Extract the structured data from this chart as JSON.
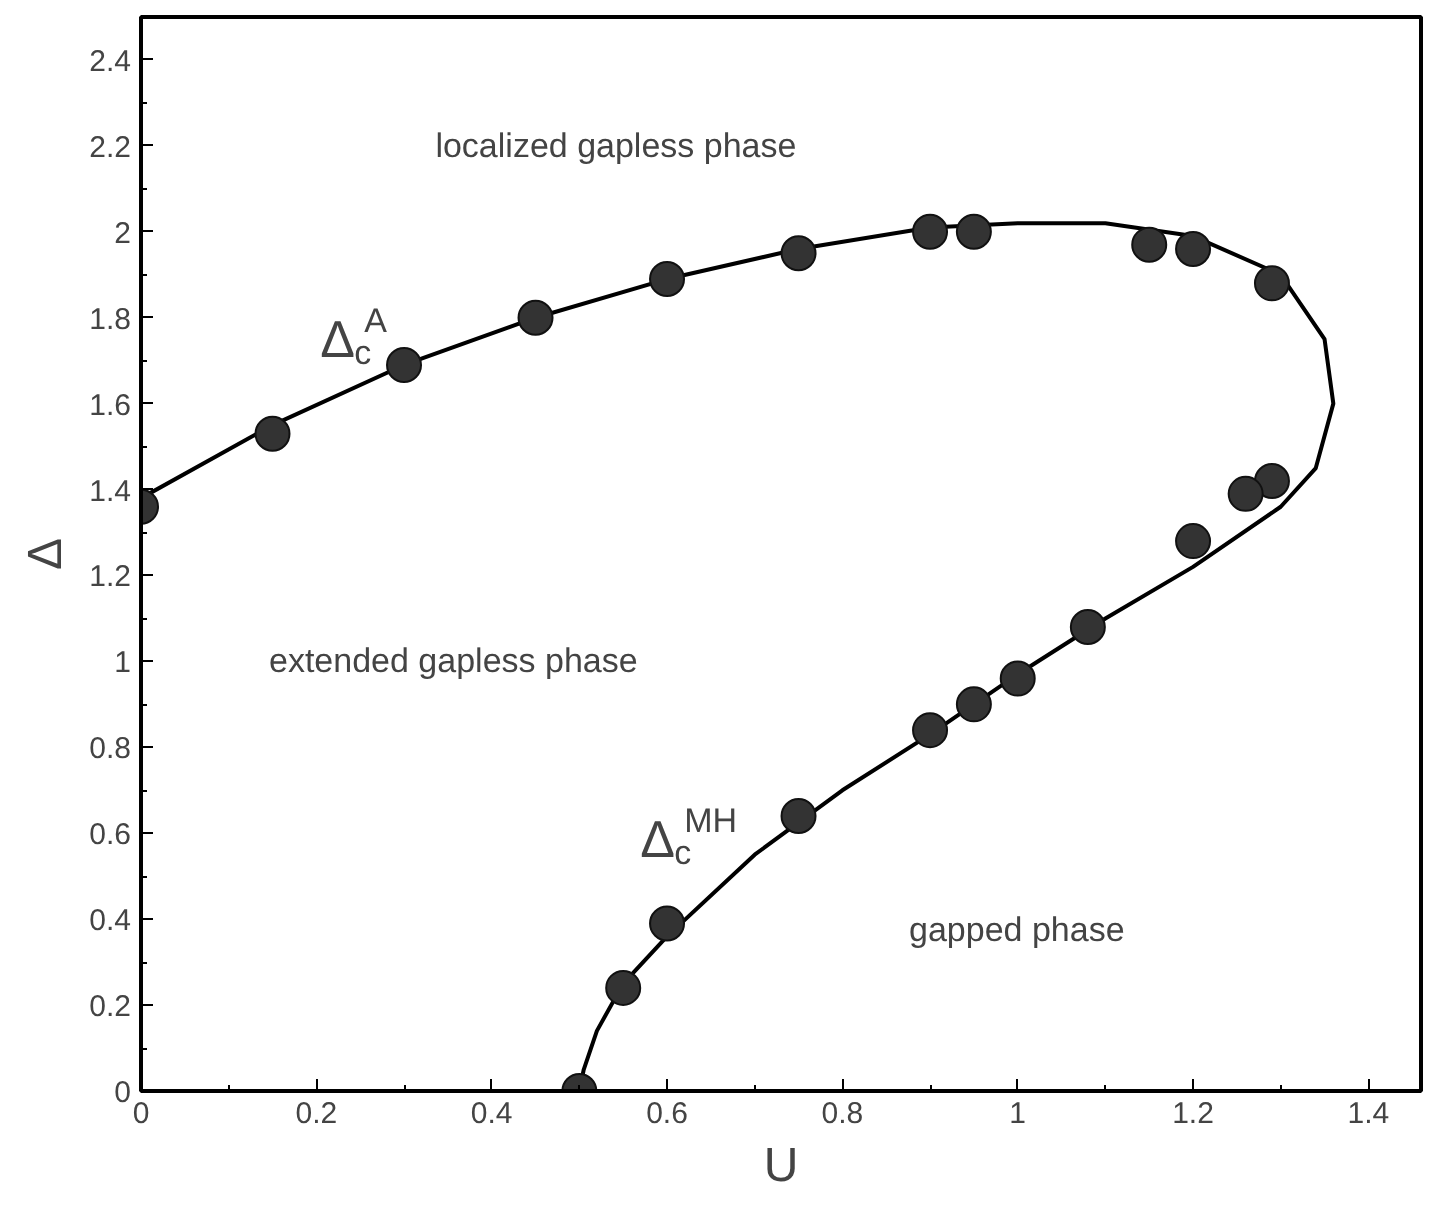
{
  "chart_data": {
    "type": "scatter",
    "xlabel": "U",
    "ylabel": "Δ",
    "xlim": [
      0,
      1.46
    ],
    "ylim": [
      0,
      2.5
    ],
    "xticks": [
      0,
      0.2,
      0.4,
      0.6,
      0.8,
      1,
      1.2,
      1.4
    ],
    "yticks": [
      0,
      0.2,
      0.4,
      0.6,
      0.8,
      1,
      1.2,
      1.4,
      1.6,
      1.8,
      2,
      2.2,
      2.4
    ],
    "grid": false,
    "series": [
      {
        "color": "#333333",
        "marker": "circle",
        "x": [
          0,
          0.15,
          0.3,
          0.45,
          0.6,
          0.75,
          0.9,
          0.95,
          1.15,
          1.2,
          1.29,
          1.29,
          1.26,
          1.2,
          1.08,
          1.0,
          0.95,
          0.9,
          0.75,
          0.6,
          0.55,
          0.5
        ],
        "values": [
          1.36,
          1.53,
          1.69,
          1.8,
          1.89,
          1.95,
          2.0,
          2.0,
          1.97,
          1.96,
          1.88,
          1.42,
          1.39,
          1.28,
          1.08,
          0.96,
          0.9,
          0.84,
          0.64,
          0.39,
          0.24,
          0.0
        ]
      },
      {
        "type": "line",
        "color": "#000000",
        "line_style": "solid",
        "x": [
          0,
          0.15,
          0.3,
          0.45,
          0.6,
          0.75,
          0.9,
          1.0,
          1.1,
          1.2,
          1.3,
          1.35,
          1.36,
          1.34,
          1.3,
          1.2,
          1.1,
          1.0,
          0.9,
          0.8,
          0.7,
          0.6,
          0.55,
          0.52,
          0.505,
          0.5
        ],
        "values": [
          1.38,
          1.55,
          1.69,
          1.8,
          1.89,
          1.96,
          2.01,
          2.02,
          2.02,
          1.99,
          1.9,
          1.75,
          1.6,
          1.45,
          1.36,
          1.22,
          1.1,
          0.97,
          0.83,
          0.7,
          0.55,
          0.36,
          0.25,
          0.14,
          0.05,
          0
        ]
      }
    ],
    "annotations": [
      "localized gapless phase",
      "extended gapless phase",
      "gapped phase",
      "Δ$_{c}$$^{A}$",
      "Δ$_{c}$$^{MH}$"
    ]
  }
}
